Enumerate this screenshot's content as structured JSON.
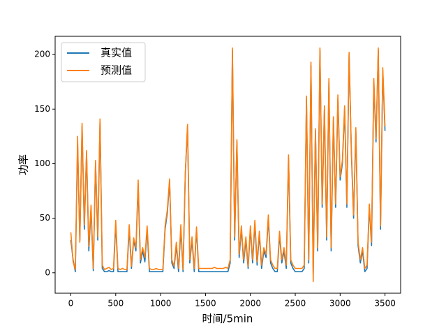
{
  "chart_data": {
    "type": "line",
    "xlabel": "时间/5min",
    "ylabel": "功率",
    "x": [
      0,
      25,
      50,
      75,
      100,
      125,
      150,
      175,
      200,
      225,
      250,
      275,
      300,
      325,
      350,
      375,
      400,
      425,
      450,
      475,
      500,
      525,
      550,
      575,
      600,
      625,
      650,
      675,
      700,
      725,
      750,
      775,
      800,
      825,
      850,
      875,
      900,
      925,
      950,
      975,
      1000,
      1025,
      1050,
      1075,
      1100,
      1125,
      1150,
      1175,
      1200,
      1225,
      1250,
      1275,
      1300,
      1325,
      1350,
      1375,
      1400,
      1425,
      1450,
      1475,
      1500,
      1525,
      1550,
      1575,
      1600,
      1625,
      1650,
      1675,
      1700,
      1725,
      1750,
      1775,
      1800,
      1825,
      1850,
      1875,
      1900,
      1925,
      1950,
      1975,
      2000,
      2025,
      2050,
      2075,
      2100,
      2125,
      2150,
      2175,
      2200,
      2225,
      2250,
      2275,
      2300,
      2325,
      2350,
      2375,
      2400,
      2425,
      2450,
      2475,
      2500,
      2525,
      2550,
      2575,
      2600,
      2625,
      2650,
      2675,
      2700,
      2725,
      2750,
      2775,
      2800,
      2825,
      2850,
      2875,
      2900,
      2925,
      2950,
      2975,
      3000,
      3025,
      3050,
      3075,
      3100,
      3125,
      3150,
      3175,
      3200,
      3225,
      3250,
      3275,
      3300,
      3325,
      3350,
      3375,
      3400,
      3425,
      3450,
      3475,
      3500
    ],
    "series": [
      {
        "name": "真实值",
        "color": "#1f77b4",
        "values": [
          30,
          12,
          1,
          118,
          30,
          134,
          40,
          110,
          20,
          58,
          2,
          100,
          30,
          138,
          4,
          1,
          1,
          2,
          1,
          1,
          44,
          1,
          1,
          1,
          1,
          1,
          40,
          4,
          30,
          20,
          80,
          9,
          20,
          10,
          40,
          1,
          1,
          1,
          1,
          1,
          1,
          1,
          40,
          55,
          84,
          9,
          4,
          25,
          1,
          40,
          1,
          90,
          134,
          9,
          30,
          1,
          40,
          1,
          1,
          1,
          1,
          1,
          1,
          1,
          1,
          1,
          1,
          1,
          1,
          1,
          1,
          9,
          204,
          30,
          120,
          14,
          40,
          9,
          30,
          4,
          40,
          9,
          45,
          7,
          35,
          4,
          20,
          14,
          50,
          9,
          4,
          1,
          1,
          35,
          9,
          20,
          4,
          105,
          9,
          4,
          1,
          1,
          1,
          1,
          4,
          160,
          9,
          190,
          0,
          130,
          20,
          204,
          60,
          150,
          30,
          175,
          20,
          140,
          60,
          160,
          85,
          100,
          150,
          60,
          200,
          110,
          50,
          130,
          25,
          9,
          20,
          1,
          4,
          60,
          25,
          175,
          120,
          204,
          40,
          185,
          130
        ]
      },
      {
        "name": "预测值",
        "color": "#ff7f0e",
        "values": [
          37,
          10,
          3,
          125,
          28,
          137,
          44,
          112,
          24,
          62,
          4,
          103,
          33,
          141,
          7,
          3,
          4,
          5,
          3,
          4,
          48,
          4,
          3,
          4,
          3,
          3,
          44,
          6,
          32,
          23,
          85,
          12,
          23,
          14,
          43,
          4,
          3,
          3,
          4,
          3,
          3,
          3,
          43,
          58,
          86,
          12,
          6,
          28,
          4,
          44,
          3,
          92,
          136,
          12,
          33,
          4,
          42,
          4,
          4,
          4,
          4,
          4,
          4,
          4,
          5,
          4,
          4,
          4,
          4,
          5,
          4,
          12,
          206,
          33,
          122,
          17,
          43,
          12,
          33,
          6,
          43,
          12,
          48,
          10,
          38,
          7,
          23,
          17,
          53,
          12,
          7,
          4,
          4,
          38,
          12,
          23,
          7,
          108,
          12,
          7,
          4,
          4,
          4,
          4,
          7,
          162,
          12,
          193,
          -8,
          132,
          23,
          206,
          63,
          153,
          33,
          178,
          23,
          143,
          63,
          163,
          88,
          103,
          153,
          63,
          202,
          113,
          53,
          133,
          28,
          12,
          23,
          4,
          7,
          63,
          28,
          178,
          123,
          206,
          43,
          188,
          134
        ]
      }
    ],
    "xlim": [
      -175,
      3674
    ],
    "xticks": [
      0,
      500,
      1000,
      1500,
      2000,
      2500,
      3000,
      3500
    ],
    "ylim": [
      -18.7,
      216.7
    ],
    "yticks": [
      0,
      50,
      100,
      150,
      200
    ],
    "legend": "upper left"
  }
}
